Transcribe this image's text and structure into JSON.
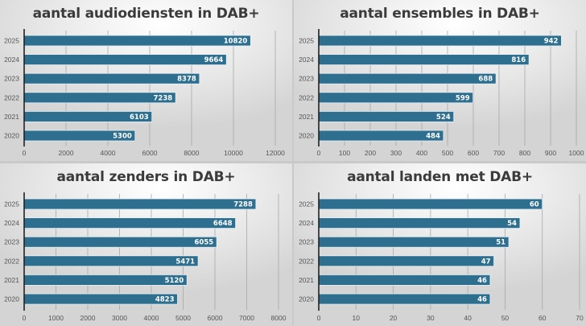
{
  "style": {
    "bar_color": "#2e6e8e",
    "bar_edge": "#e8f0f4",
    "grid_color": "#a8a8a8",
    "axis_color": "#222222"
  },
  "chart_data": [
    {
      "type": "bar",
      "orientation": "horizontal",
      "title": "aantal audiodiensten in DAB+",
      "categories": [
        "2025",
        "2024",
        "2023",
        "2022",
        "2021",
        "2020"
      ],
      "values": [
        10820,
        9664,
        8378,
        7238,
        6103,
        5300
      ],
      "data_labels": [
        "10820",
        "9664",
        "8378",
        "7238",
        "6103",
        "5300"
      ],
      "xlim": [
        0,
        12000
      ],
      "xticks": [
        0,
        2000,
        4000,
        6000,
        8000,
        10000,
        12000
      ],
      "xtick_labels": [
        "0",
        "2000",
        "4000",
        "6000",
        "8000",
        "10000",
        "12000"
      ],
      "xlabel": "",
      "ylabel": "",
      "grid": true,
      "legend": "none"
    },
    {
      "type": "bar",
      "orientation": "horizontal",
      "title": "aantal ensembles in DAB+",
      "categories": [
        "2025",
        "2024",
        "2023",
        "2022",
        "2021",
        "2020"
      ],
      "values": [
        942,
        816,
        688,
        599,
        524,
        484
      ],
      "data_labels": [
        "942",
        "816",
        "688",
        "599",
        "524",
        "484"
      ],
      "xlim": [
        0,
        1000
      ],
      "xticks": [
        0,
        100,
        200,
        300,
        400,
        500,
        600,
        700,
        800,
        900,
        1000
      ],
      "xtick_labels": [
        "0",
        "100",
        "200",
        "300",
        "400",
        "500",
        "600",
        "700",
        "800",
        "900",
        "1000"
      ],
      "xlabel": "",
      "ylabel": "",
      "grid": true,
      "legend": "none"
    },
    {
      "type": "bar",
      "orientation": "horizontal",
      "title": "aantal zenders in DAB+",
      "categories": [
        "2025",
        "2024",
        "2023",
        "2022",
        "2021",
        "2020"
      ],
      "values": [
        7288,
        6648,
        6055,
        5471,
        5120,
        4823
      ],
      "data_labels": [
        "7288",
        "6648",
        "6055",
        "5471",
        "5120",
        "4823"
      ],
      "xlim": [
        0,
        8000
      ],
      "xticks": [
        0,
        1000,
        2000,
        3000,
        4000,
        5000,
        6000,
        7000,
        8000
      ],
      "xtick_labels": [
        "0",
        "1000",
        "2000",
        "3000",
        "4000",
        "5000",
        "6000",
        "7000",
        "8000"
      ],
      "xlabel": "",
      "ylabel": "",
      "grid": true,
      "legend": "none"
    },
    {
      "type": "bar",
      "orientation": "horizontal",
      "title": "aantal landen met DAB+",
      "categories": [
        "2025",
        "2024",
        "2023",
        "2022",
        "2021",
        "2020"
      ],
      "values": [
        60,
        54,
        51,
        47,
        46,
        46
      ],
      "data_labels": [
        "60",
        "54",
        "51",
        "47",
        "46",
        "46"
      ],
      "xlim": [
        0,
        70
      ],
      "xticks": [
        0,
        10,
        20,
        30,
        40,
        50,
        60,
        70
      ],
      "xtick_labels": [
        "0",
        "10",
        "20",
        "30",
        "40",
        "50",
        "60",
        "70"
      ],
      "xlabel": "",
      "ylabel": "",
      "grid": true,
      "legend": "none"
    }
  ]
}
